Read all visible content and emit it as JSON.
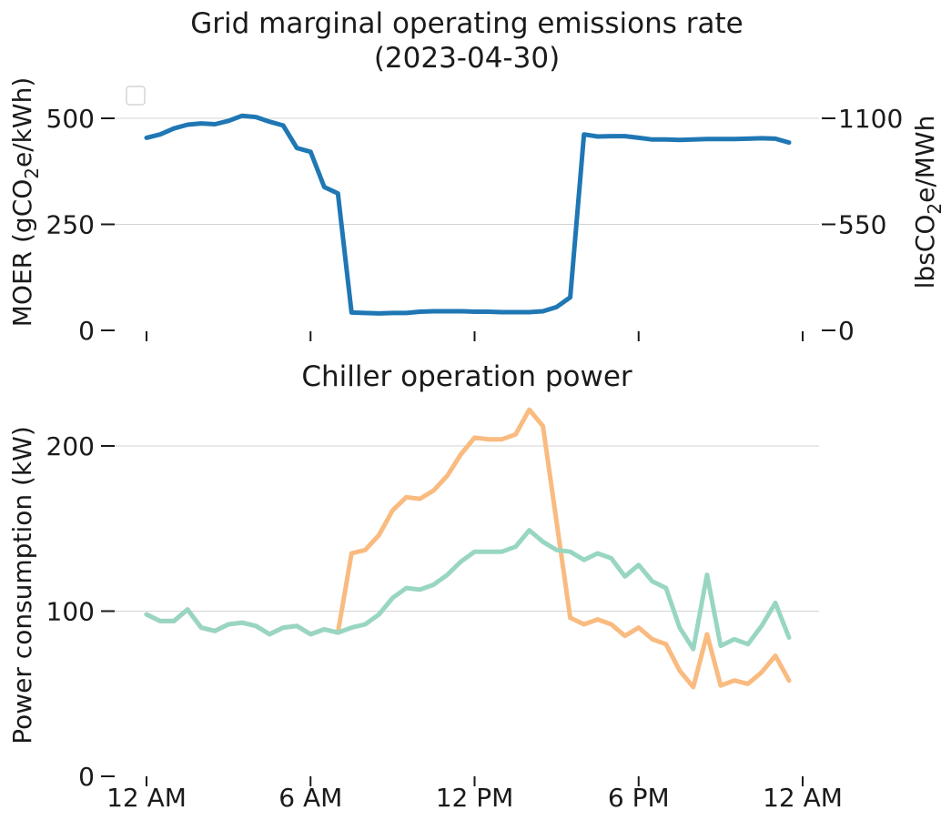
{
  "chart_data": [
    {
      "type": "line",
      "title_lines": [
        "Grid marginal operating emissions rate",
        "(2023-04-30)"
      ],
      "ylabel": {
        "pre": "MOER (gCO",
        "sub": "2",
        "post": "e/kWh)"
      },
      "ylabel_right": {
        "pre": "lbsCO",
        "sub": "2",
        "post": "e/MWh"
      },
      "ylim": [
        0,
        520
      ],
      "yticks": [
        0,
        250,
        500
      ],
      "yticks_right": [
        0,
        550,
        1100
      ],
      "yticks_right_scale_factor": 2.2,
      "grid": "horizontal",
      "legend": "top-left (empty)",
      "x_hours": [
        0,
        0.5,
        1,
        1.5,
        2,
        2.5,
        3,
        3.5,
        4,
        4.5,
        5,
        5.5,
        6,
        6.5,
        7,
        7.5,
        8,
        8.5,
        9,
        9.5,
        10,
        10.5,
        11,
        11.5,
        12,
        12.5,
        13,
        13.5,
        14,
        14.5,
        15,
        15.5,
        16,
        16.5,
        17,
        17.5,
        18,
        18.5,
        19,
        19.5,
        20,
        20.5,
        21,
        21.5,
        22,
        22.5,
        23,
        23.5
      ],
      "series": [
        {
          "color": "#1f77b4",
          "values": [
            454,
            462,
            476,
            485,
            488,
            486,
            494,
            506,
            503,
            492,
            483,
            430,
            421,
            338,
            323,
            42,
            41,
            40,
            41,
            41,
            44,
            45,
            45,
            45,
            44,
            44,
            43,
            43,
            43,
            45,
            55,
            78,
            462,
            457,
            458,
            458,
            454,
            450,
            450,
            449,
            450,
            451,
            451,
            451,
            452,
            453,
            452,
            443
          ]
        }
      ]
    },
    {
      "type": "line",
      "title": "Chiller operation power",
      "ylabel": "Power consumption (kW)",
      "ylim": [
        0,
        225
      ],
      "yticks": [
        0,
        100,
        200
      ],
      "xticks": [
        "12 AM",
        "6 AM",
        "12 PM",
        "6 PM",
        "12 AM"
      ],
      "xtick_hours": [
        0,
        6,
        12,
        18,
        24
      ],
      "grid": "horizontal",
      "x_hours": [
        0,
        0.5,
        1,
        1.5,
        2,
        2.5,
        3,
        3.5,
        4,
        4.5,
        5,
        5.5,
        6,
        6.5,
        7,
        7.5,
        8,
        8.5,
        9,
        9.5,
        10,
        10.5,
        11,
        11.5,
        12,
        12.5,
        13,
        13.5,
        14,
        14.5,
        15,
        15.5,
        16,
        16.5,
        17,
        17.5,
        18,
        18.5,
        19,
        19.5,
        20,
        20.5,
        21,
        21.5,
        22,
        22.5,
        23,
        23.5
      ],
      "series": [
        {
          "color": "#f9bb80",
          "values": [
            98,
            94,
            94,
            101,
            90,
            88,
            92,
            93,
            91,
            86,
            90,
            91,
            86,
            89,
            87,
            135,
            137,
            146,
            161,
            169,
            168,
            173,
            182,
            195,
            205,
            204,
            204,
            207,
            222,
            212,
            154,
            96,
            92,
            95,
            92,
            85,
            90,
            83,
            80,
            64,
            54,
            86,
            55,
            58,
            56,
            63,
            73,
            58
          ]
        },
        {
          "color": "#98d6c2",
          "values": [
            98,
            94,
            94,
            101,
            90,
            88,
            92,
            93,
            91,
            86,
            90,
            91,
            86,
            89,
            87,
            90,
            92,
            98,
            108,
            114,
            113,
            116,
            122,
            130,
            136,
            136,
            136,
            139,
            149,
            142,
            137,
            136,
            131,
            135,
            132,
            121,
            128,
            118,
            114,
            90,
            77,
            122,
            79,
            83,
            80,
            91,
            105,
            84
          ]
        }
      ]
    }
  ]
}
